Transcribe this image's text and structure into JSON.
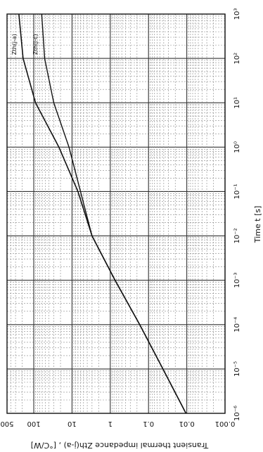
{
  "chart_data": {
    "type": "line",
    "orientation": "rotated-90-clockwise",
    "x_axis": {
      "label": "Time  t  [s]",
      "scale": "log",
      "range": [
        1e-06,
        1000
      ],
      "ticks": [
        {
          "value": 1e-06,
          "label": "10⁻⁶"
        },
        {
          "value": 1e-05,
          "label": "10⁻⁵"
        },
        {
          "value": 0.0001,
          "label": "10⁻⁴"
        },
        {
          "value": 0.001,
          "label": "10⁻³"
        },
        {
          "value": 0.01,
          "label": "10⁻²"
        },
        {
          "value": 0.1,
          "label": "10⁻¹"
        },
        {
          "value": 1,
          "label": "10⁰"
        },
        {
          "value": 10,
          "label": "10¹"
        },
        {
          "value": 100,
          "label": "10²"
        },
        {
          "value": 1000,
          "label": "10³"
        }
      ]
    },
    "y_axis": {
      "label": "Transient thermal impedance   Zth(j-a) ,  [°C/W]",
      "scale": "log",
      "range": [
        0.001,
        500
      ],
      "ticks": [
        {
          "value": 0.001,
          "label": "0.001"
        },
        {
          "value": 0.01,
          "label": "0.01"
        },
        {
          "value": 0.1,
          "label": "0.1"
        },
        {
          "value": 1,
          "label": "1"
        },
        {
          "value": 10,
          "label": "10"
        },
        {
          "value": 100,
          "label": "100"
        },
        {
          "value": 500,
          "label": "500"
        }
      ]
    },
    "grid": true,
    "series": [
      {
        "name": "Zth(j-a)",
        "x": [
          1e-06,
          1e-05,
          0.0001,
          0.001,
          0.01,
          0.1,
          1,
          10,
          100,
          1000
        ],
        "y": [
          0.0105,
          0.042,
          0.17,
          0.75,
          3.0,
          7.0,
          22,
          90,
          190,
          245
        ]
      },
      {
        "name": "Zth(j-c)",
        "x": [
          1e-06,
          1e-05,
          0.0001,
          0.001,
          0.01,
          0.1,
          1,
          10,
          100,
          1000
        ],
        "y": [
          0.0105,
          0.042,
          0.17,
          0.75,
          3.0,
          6.0,
          12,
          30,
          52,
          62
        ]
      }
    ]
  }
}
